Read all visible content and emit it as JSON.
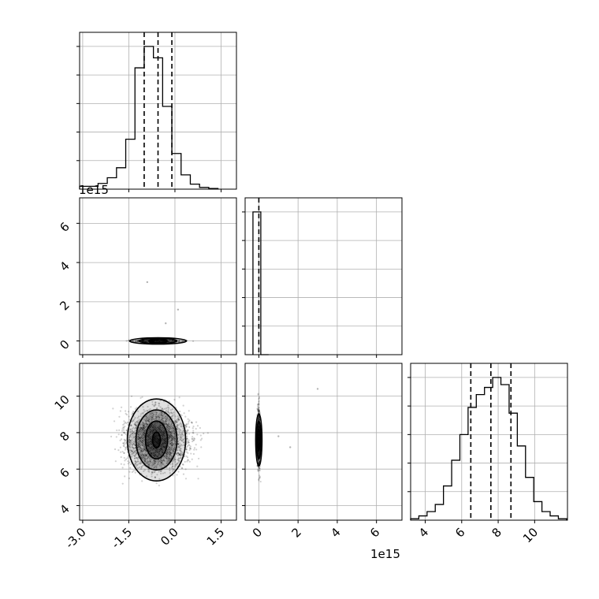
{
  "chart_data": {
    "type": "corner",
    "grid": true,
    "panels": [
      {
        "id": "hist-param1",
        "type": "histogram",
        "xlim": [
          -3.1,
          2.0
        ],
        "bins": [
          -3.1,
          -2.8,
          -2.5,
          -2.2,
          -1.9,
          -1.6,
          -1.3,
          -1.0,
          -0.7,
          -0.4,
          -0.1,
          0.2,
          0.5,
          0.8,
          1.1,
          1.4
        ],
        "counts": [
          0.02,
          0.02,
          0.04,
          0.08,
          0.15,
          0.35,
          0.85,
          1.0,
          0.92,
          0.58,
          0.25,
          0.1,
          0.035,
          0.012,
          0.005
        ],
        "quantiles": [
          -1.0,
          -0.55,
          -0.1
        ]
      },
      {
        "id": "scatter-param1-param2",
        "type": "scatter-contour",
        "xlim": [
          -3.1,
          2.0
        ],
        "ylim_label_scale": "1e15",
        "ylim": [
          -0.7,
          7.3
        ],
        "yticks": [
          0,
          2,
          4,
          6
        ],
        "center": [
          -0.55,
          0.0
        ],
        "outliers": [
          [
            -0.9,
            3.0
          ],
          [
            -0.3,
            0.9
          ],
          [
            0.1,
            1.6
          ]
        ]
      },
      {
        "id": "hist-param2",
        "type": "histogram",
        "xlim": [
          -0.7,
          7.3
        ],
        "bins": [
          -0.3,
          0.1,
          0.5
        ],
        "counts": [
          1.0,
          0.0
        ],
        "quantiles": [
          0.0
        ]
      },
      {
        "id": "scatter-param1-param3",
        "type": "scatter-contour",
        "xlim": [
          -3.1,
          2.0
        ],
        "xticks": [
          "-3.0",
          "-1.5",
          "0.0",
          "1.5"
        ],
        "ylim": [
          3.2,
          11.8
        ],
        "yticks": [
          "4",
          "6",
          "8",
          "10"
        ],
        "center": [
          -0.6,
          7.6
        ]
      },
      {
        "id": "scatter-param2-param3",
        "type": "scatter-contour",
        "xlim": [
          -0.7,
          7.3
        ],
        "xticks": [
          "0",
          "2",
          "4",
          "6"
        ],
        "xlabel_scale": "1e15",
        "ylim": [
          3.2,
          11.8
        ],
        "center": [
          0.0,
          7.6
        ],
        "outliers": [
          [
            1.0,
            7.8
          ],
          [
            1.6,
            7.2
          ],
          [
            3.0,
            10.4
          ]
        ]
      },
      {
        "id": "hist-param3",
        "type": "histogram",
        "xlim": [
          3.2,
          11.8
        ],
        "xticks": [
          "4",
          "6",
          "8",
          "10"
        ],
        "bins": [
          3.2,
          3.65,
          4.1,
          4.55,
          5.0,
          5.45,
          5.9,
          6.35,
          6.8,
          7.25,
          7.7,
          8.15,
          8.6,
          9.05,
          9.5,
          9.95,
          10.4,
          10.85,
          11.3,
          11.75
        ],
        "counts": [
          0.01,
          0.03,
          0.06,
          0.11,
          0.24,
          0.42,
          0.6,
          0.79,
          0.88,
          0.93,
          1.0,
          0.95,
          0.75,
          0.52,
          0.3,
          0.13,
          0.06,
          0.03,
          0.01
        ],
        "quantiles": [
          6.5,
          7.6,
          8.7
        ]
      }
    ]
  }
}
